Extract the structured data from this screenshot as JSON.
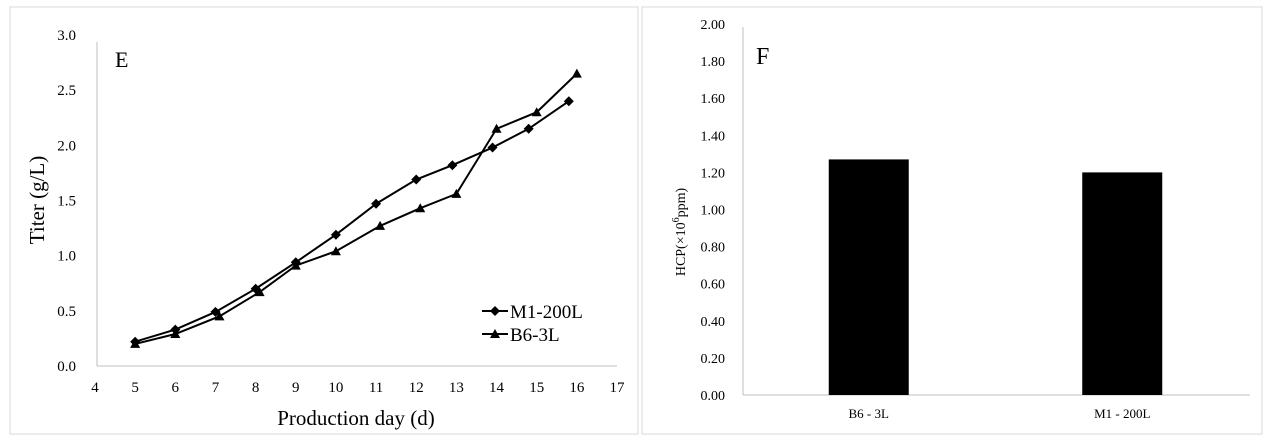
{
  "chart_data": [
    {
      "type": "line",
      "panel_label": "E",
      "xlabel": "Production day (d)",
      "ylabel": "Titer (g/L)",
      "xlim": [
        4,
        17
      ],
      "ylim": [
        0,
        3.0
      ],
      "xticks": [
        "4",
        "5",
        "6",
        "7",
        "8",
        "9",
        "10",
        "11",
        "12",
        "13",
        "14",
        "15",
        "16",
        "17"
      ],
      "yticks": [
        "0.0",
        "0.5",
        "1.0",
        "1.5",
        "2.0",
        "2.5",
        "3.0"
      ],
      "grid": false,
      "legend_position": "bottom-right",
      "series": [
        {
          "name": "M1-200L",
          "marker": "diamond",
          "x": [
            5,
            6,
            7,
            8,
            9,
            10,
            11,
            12,
            12.9,
            13.9,
            14.8,
            15.8
          ],
          "y": [
            0.22,
            0.33,
            0.49,
            0.7,
            0.94,
            1.19,
            1.47,
            1.69,
            1.82,
            1.98,
            2.15,
            2.4
          ]
        },
        {
          "name": "B6-3L",
          "marker": "triangle",
          "x": [
            5,
            6,
            7.1,
            8.1,
            9,
            10,
            11.1,
            12.1,
            13,
            14,
            15,
            16
          ],
          "y": [
            0.2,
            0.29,
            0.45,
            0.67,
            0.91,
            1.04,
            1.27,
            1.43,
            1.56,
            2.15,
            2.3,
            2.65
          ]
        }
      ],
      "color": "#000000"
    },
    {
      "type": "bar",
      "panel_label": "F",
      "ylabel_main": "HCP(×10",
      "ylabel_sup": "6",
      "ylabel_tail": "ppm)",
      "categories": [
        "B6 - 3L",
        "M1 - 200L"
      ],
      "values": [
        1.27,
        1.2
      ],
      "ylim": [
        0,
        2.0
      ],
      "yticks": [
        "0.00",
        "0.20",
        "0.40",
        "0.60",
        "0.80",
        "1.00",
        "1.20",
        "1.40",
        "1.60",
        "1.80",
        "2.00"
      ],
      "grid": false,
      "color": "#000000"
    }
  ]
}
